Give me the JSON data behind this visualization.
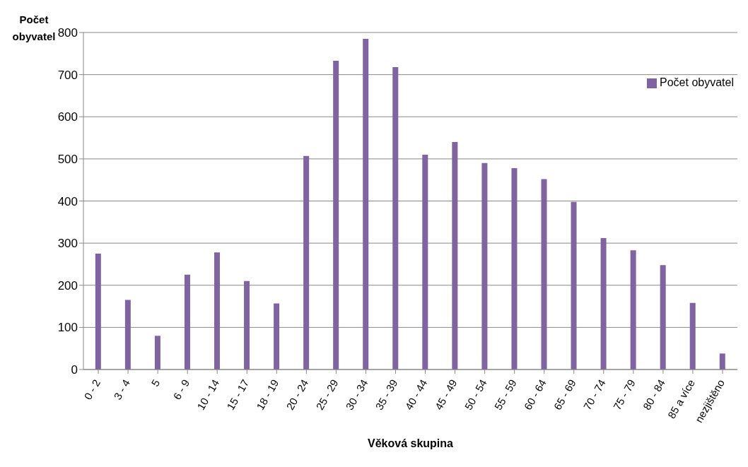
{
  "chart_data": {
    "type": "bar",
    "xlabel": "Věková skupina",
    "ylabel": "Počet obyvatel",
    "categories": [
      "0 - 2",
      "3 - 4",
      "5",
      "6 - 9",
      "10 - 14",
      "15 - 17",
      "18 - 19",
      "20 - 24",
      "25 - 29",
      "30 - 34",
      "35 - 39",
      "40 - 44",
      "45 - 49",
      "50 - 54",
      "55 - 59",
      "60 - 64",
      "65 - 69",
      "70 - 74",
      "75 - 79",
      "80 - 84",
      "85 a více",
      "nezjištěno"
    ],
    "series": [
      {
        "name": "Počet obyvatel",
        "color": "#8064a2",
        "values": [
          275,
          165,
          80,
          225,
          278,
          210,
          157,
          507,
          733,
          785,
          718,
          510,
          540,
          490,
          478,
          452,
          398,
          312,
          283,
          248,
          158,
          38
        ]
      }
    ],
    "ylim": [
      0,
      800
    ],
    "yticks": [
      0,
      100,
      200,
      300,
      400,
      500,
      600,
      700,
      800
    ],
    "grid": "y",
    "legend": "top right"
  }
}
